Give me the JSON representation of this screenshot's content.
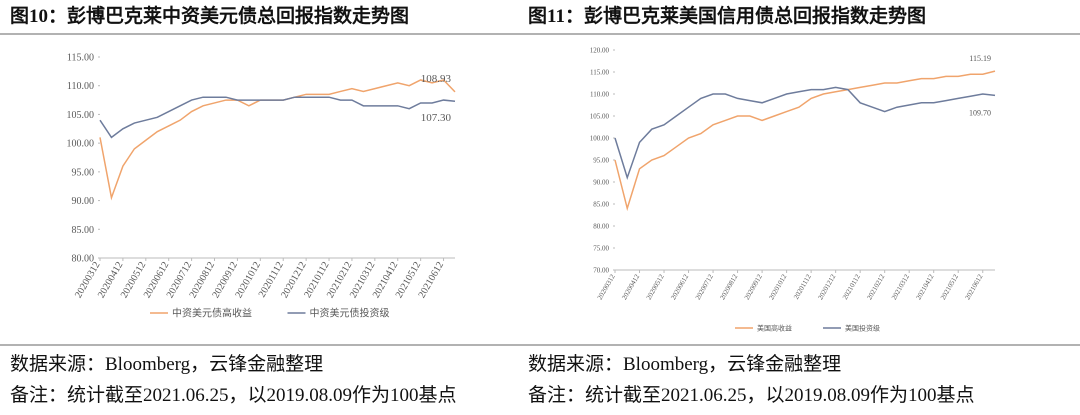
{
  "chart_data": [
    {
      "type": "line",
      "title": "图10：彭博巴克莱中资美元债总回报指数走势图",
      "categories": [
        "20200312",
        null,
        "20200412",
        null,
        "20200512",
        null,
        "20200612",
        null,
        "20200712",
        null,
        "20200812",
        null,
        "20200912",
        null,
        "20201012",
        null,
        "20201112",
        null,
        "20201212",
        null,
        "20210112",
        null,
        "20210212",
        null,
        "20210312",
        null,
        "20210412",
        null,
        "20210512",
        null,
        "20210612",
        null
      ],
      "series": [
        {
          "name": "中资美元债高收益",
          "color": "#f0a46c",
          "values": [
            101,
            90.5,
            96,
            99,
            100.5,
            102,
            103,
            104,
            105.5,
            106.5,
            107,
            107.5,
            107.5,
            106.5,
            107.5,
            107.5,
            107.5,
            108,
            108.5,
            108.5,
            108.5,
            109,
            109.5,
            109,
            109.5,
            110,
            110.5,
            110,
            111,
            110.5,
            111,
            108.93
          ]
        },
        {
          "name": "中资美元债投资级",
          "color": "#6e7c9c",
          "values": [
            104,
            101,
            102.5,
            103.5,
            104,
            104.5,
            105.5,
            106.5,
            107.5,
            108,
            108,
            108,
            107.5,
            107.5,
            107.5,
            107.5,
            107.5,
            108,
            108,
            108,
            108,
            107.5,
            107.5,
            106.5,
            106.5,
            106.5,
            106.5,
            106,
            107,
            107,
            107.5,
            107.3
          ]
        }
      ],
      "annotations": [
        "108.93",
        "107.30"
      ],
      "ylim": [
        80,
        115
      ],
      "yticks": [
        {
          "value": 80,
          "label": "80.00"
        },
        {
          "value": 85,
          "label": "85.00"
        },
        {
          "value": 90,
          "label": "90.00"
        },
        {
          "value": 95,
          "label": "95.00"
        },
        {
          "value": 100,
          "label": "100.00"
        },
        {
          "value": 105,
          "label": "105.00"
        },
        {
          "value": 110,
          "label": "110.00"
        },
        {
          "value": 115,
          "label": "115.00"
        }
      ]
    },
    {
      "type": "line",
      "title": "图11：彭博巴克莱美国信用债总回报指数走势图",
      "categories": [
        "20200312",
        null,
        "20200412",
        null,
        "20200512",
        null,
        "20200612",
        null,
        "20200712",
        null,
        "20200812",
        null,
        "20200912",
        null,
        "20201012",
        null,
        "20201112",
        null,
        "20201212",
        null,
        "20210112",
        null,
        "20210212",
        null,
        "20210312",
        null,
        "20210412",
        null,
        "20210512",
        null,
        "20210612",
        null
      ],
      "series": [
        {
          "name": "美国高收益",
          "color": "#f0a46c",
          "values": [
            95,
            84,
            93,
            95,
            96,
            98,
            100,
            101,
            103,
            104,
            105,
            105,
            104,
            105,
            106,
            107,
            109,
            110,
            110.5,
            111,
            111.5,
            112,
            112.5,
            112.5,
            113,
            113.5,
            113.5,
            114,
            114,
            114.5,
            114.5,
            115.19
          ]
        },
        {
          "name": "美国投资级",
          "color": "#6e7c9c",
          "values": [
            100,
            91,
            99,
            102,
            103,
            105,
            107,
            109,
            110,
            110,
            109,
            108.5,
            108,
            109,
            110,
            110.5,
            111,
            111,
            111.5,
            111,
            108,
            107,
            106,
            107,
            107.5,
            108,
            108,
            108.5,
            109,
            109.5,
            110,
            109.7
          ]
        }
      ],
      "annotations": [
        "115.19",
        "109.70"
      ],
      "ylim": [
        70,
        120
      ],
      "yticks": [
        {
          "value": 70,
          "label": "70.00"
        },
        {
          "value": 75,
          "label": "75.00"
        },
        {
          "value": 80,
          "label": "80.00"
        },
        {
          "value": 85,
          "label": "85.00"
        },
        {
          "value": 90,
          "label": "90.00"
        },
        {
          "value": 95,
          "label": "95.00"
        },
        {
          "value": 100,
          "label": "100.00"
        },
        {
          "value": 105,
          "label": "105.00"
        },
        {
          "value": 110,
          "label": "110.00"
        },
        {
          "value": 115,
          "label": "115.00"
        },
        {
          "value": 120,
          "label": "120.00"
        }
      ]
    }
  ],
  "footer": [
    {
      "source": "数据来源：Bloomberg，云锋金融整理",
      "note": "备注：统计截至2021.06.25，以2019.08.09作为100基点"
    },
    {
      "source": "数据来源：Bloomberg，云锋金融整理",
      "note": "备注：统计截至2021.06.25，以2019.08.09作为100基点"
    }
  ]
}
